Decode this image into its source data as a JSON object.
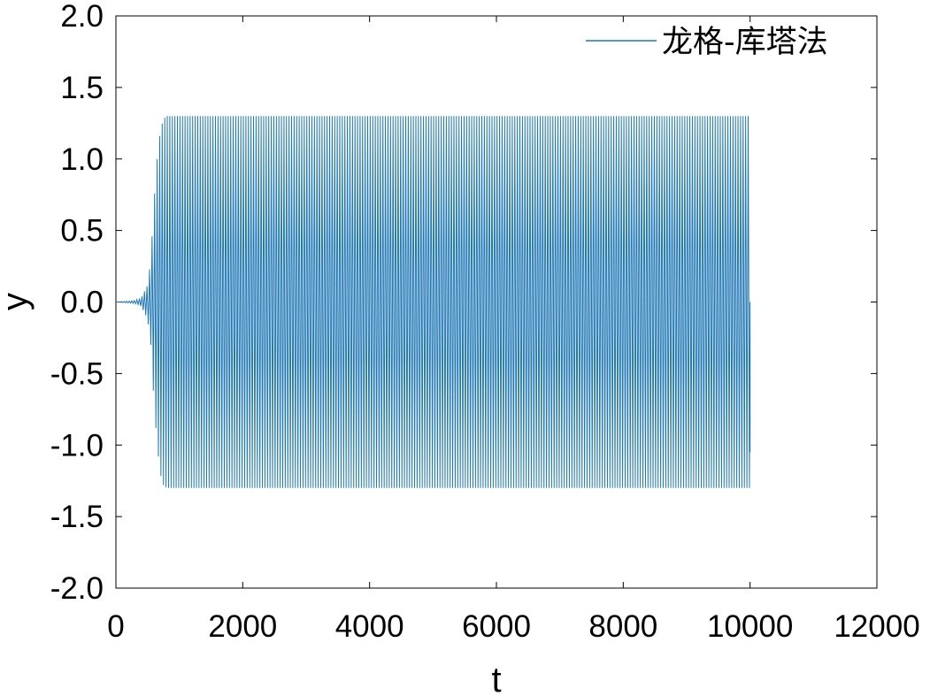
{
  "chart_data": {
    "type": "line",
    "title": "",
    "xlabel": "t",
    "ylabel": "y",
    "xlim": [
      0,
      12000
    ],
    "ylim": [
      -2.0,
      2.0
    ],
    "x_ticks": [
      "0",
      "2000",
      "4000",
      "6000",
      "8000",
      "10000",
      "12000"
    ],
    "y_ticks": [
      "2.0",
      "1.5",
      "1.0",
      "0.5",
      "0.0",
      "-0.5",
      "-1.0",
      "-1.5",
      "-2.0"
    ],
    "grid": false,
    "legend_position": "top-right",
    "line_color": "#1f77b4",
    "series": [
      {
        "name": "龙格-库塔法",
        "description_points": {
          "t": [
            0,
            300,
            400,
            500,
            550,
            600,
            650,
            700,
            750,
            800,
            850,
            10000
          ],
          "amplitude": [
            0,
            0.01,
            0.03,
            0.12,
            0.3,
            0.7,
            1.0,
            1.2,
            1.28,
            1.3,
            1.3,
            1.3
          ]
        },
        "t_start": 0,
        "t_end": 10000,
        "period": 40,
        "steady_amplitude": 1.3
      }
    ]
  }
}
